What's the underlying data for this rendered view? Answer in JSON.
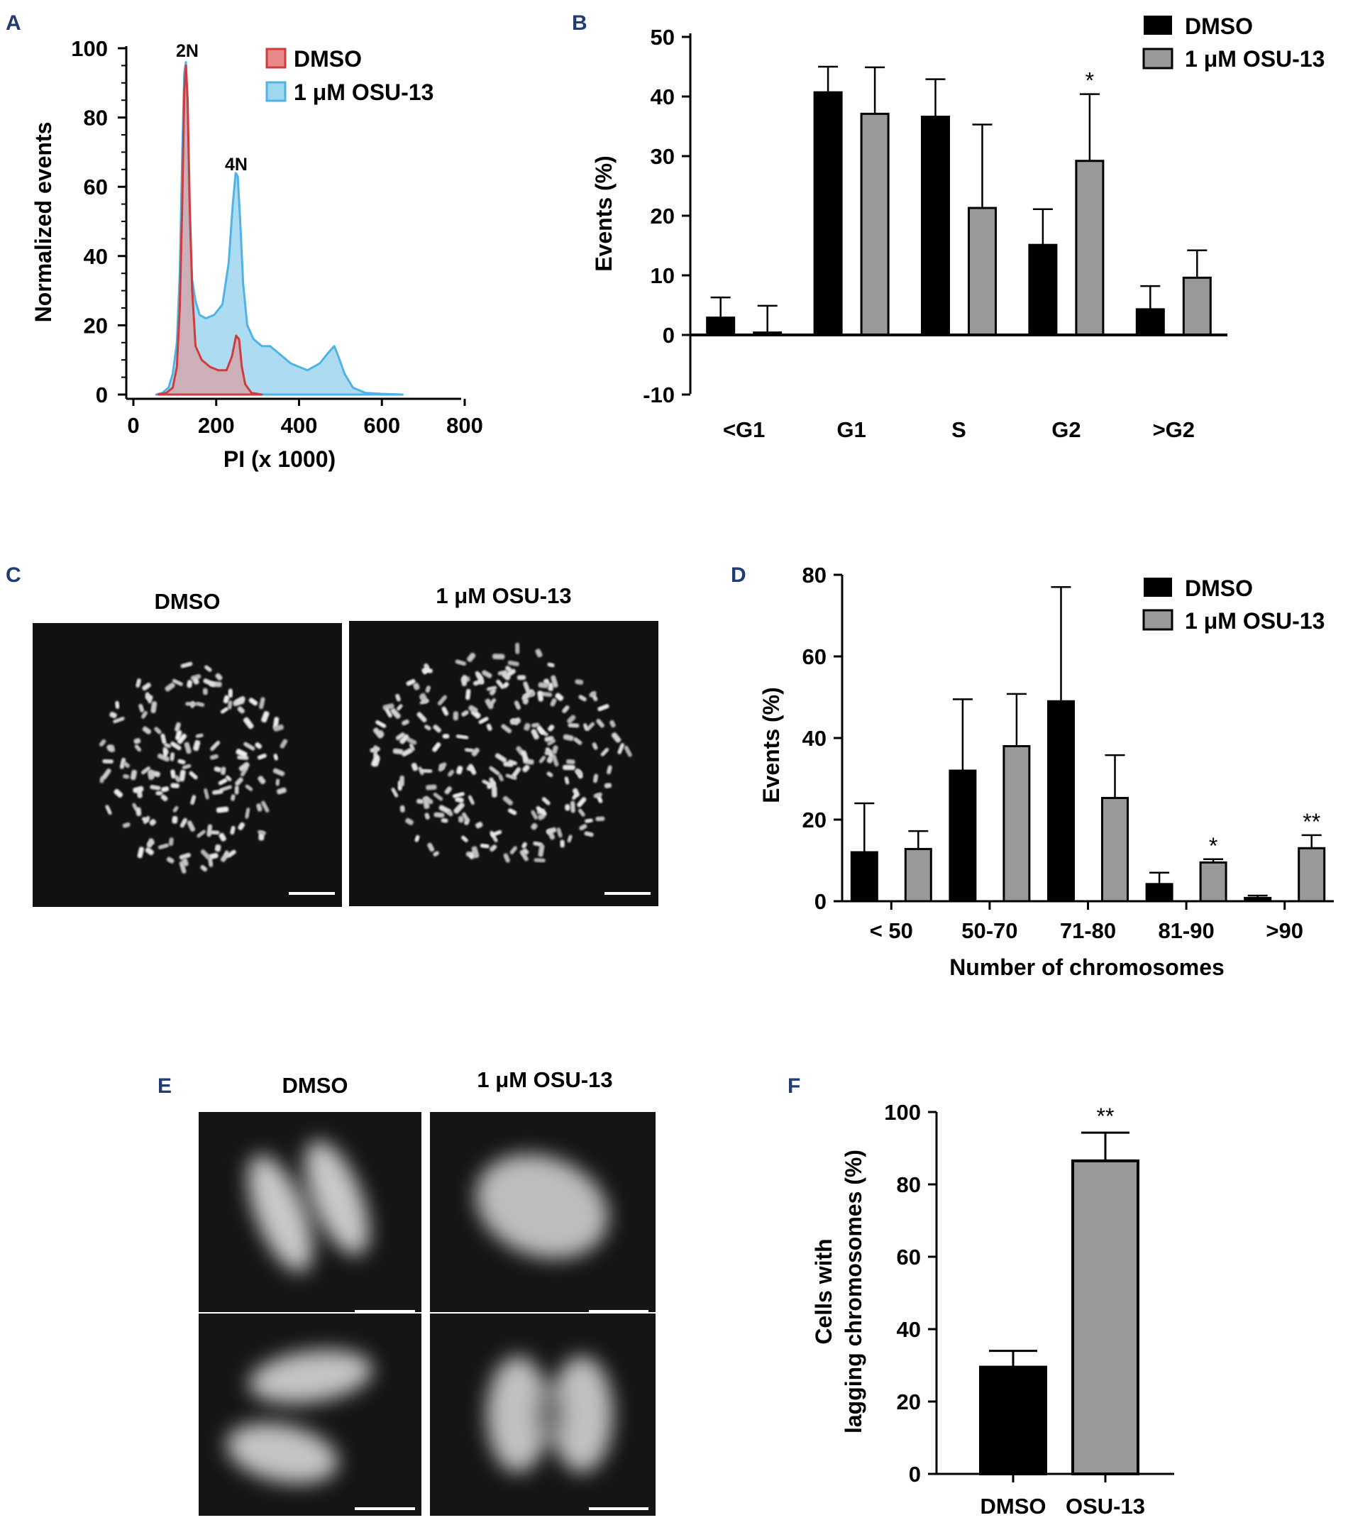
{
  "panel_labels": [
    "A",
    "B",
    "C",
    "D",
    "E",
    "F"
  ],
  "colors": {
    "dmso": "#000000",
    "osu": "#999999",
    "hist_dmso": "#e88a8a",
    "hist_osu": "#9fd6f0"
  },
  "chart_data": [
    {
      "id": "A",
      "type": "area",
      "xlabel": "PI (x 1000)",
      "ylabel": "Normalized events",
      "xlim": [
        0,
        800
      ],
      "ylim": [
        0,
        100
      ],
      "xticks": [
        "0",
        "200",
        "400",
        "600",
        "800"
      ],
      "yticks": [
        "0",
        "20",
        "40",
        "60",
        "80",
        "100"
      ],
      "annotations": [
        "2N",
        "4N"
      ],
      "legend": [
        "DMSO",
        "1 μM OSU-13"
      ],
      "series": [
        {
          "name": "DMSO",
          "x": [
            60,
            80,
            95,
            105,
            112,
            118,
            123,
            127,
            131,
            136,
            142,
            150,
            165,
            185,
            205,
            225,
            238,
            248,
            255,
            262,
            270,
            285,
            310
          ],
          "y": [
            0,
            0.5,
            2,
            8,
            25,
            55,
            88,
            95,
            85,
            55,
            30,
            14,
            10,
            8,
            7,
            7,
            11,
            17,
            16,
            8,
            3,
            0.5,
            0
          ]
        },
        {
          "name": "1 μM OSU-13",
          "x": [
            55,
            70,
            85,
            95,
            105,
            112,
            118,
            123,
            127,
            131,
            136,
            142,
            150,
            160,
            175,
            195,
            215,
            230,
            240,
            247,
            252,
            258,
            265,
            275,
            290,
            310,
            330,
            350,
            380,
            420,
            450,
            470,
            485,
            495,
            510,
            530,
            560,
            600,
            650
          ],
          "y": [
            0,
            0.5,
            2,
            6,
            15,
            35,
            70,
            93,
            96,
            80,
            50,
            33,
            27,
            23,
            22,
            23,
            26,
            38,
            55,
            64,
            63,
            50,
            32,
            20,
            16,
            14,
            14,
            12,
            9,
            7,
            9,
            12,
            14,
            11,
            6,
            2,
            0.5,
            0.2,
            0
          ]
        }
      ]
    },
    {
      "id": "B",
      "type": "bar",
      "ylabel": "Events (%)",
      "ylim": [
        -10,
        50
      ],
      "yticks": [
        "-10",
        "0",
        "10",
        "20",
        "30",
        "40",
        "50"
      ],
      "categories": [
        "<G1",
        "G1",
        "S",
        "G2",
        ">G2"
      ],
      "legend": [
        "DMSO",
        "1 μM OSU-13"
      ],
      "series": [
        {
          "name": "DMSO",
          "values": [
            2.9,
            40.7,
            36.6,
            15.1,
            4.3
          ],
          "errors": [
            3.4,
            4.3,
            6.3,
            6.0,
            3.9
          ]
        },
        {
          "name": "1 μM OSU-13",
          "values": [
            0.4,
            37.1,
            21.3,
            29.2,
            9.6
          ],
          "errors": [
            4.5,
            7.8,
            14.0,
            11.2,
            4.6
          ]
        }
      ],
      "significance": [
        {
          "category": "G2",
          "series": 1,
          "mark": "*"
        }
      ]
    },
    {
      "id": "D",
      "type": "bar",
      "xlabel": "Number of chromosomes",
      "ylabel": "Events (%)",
      "ylim": [
        0,
        80
      ],
      "yticks": [
        "0",
        "20",
        "40",
        "60",
        "80"
      ],
      "categories": [
        "< 50",
        "50-70",
        "71-80",
        "81-90",
        ">90"
      ],
      "legend": [
        "DMSO",
        "1 μM OSU-13"
      ],
      "series": [
        {
          "name": "DMSO",
          "values": [
            12,
            32,
            49,
            4.2,
            0.8
          ],
          "errors": [
            12,
            17.5,
            28,
            2.8,
            0.6
          ]
        },
        {
          "name": "1 μM OSU-13",
          "values": [
            12.8,
            38,
            25.3,
            9.5,
            13
          ],
          "errors": [
            4.4,
            12.8,
            10.5,
            0.8,
            3.2
          ]
        }
      ],
      "significance": [
        {
          "category": "81-90",
          "series": 1,
          "mark": "*"
        },
        {
          "category": ">90",
          "series": 1,
          "mark": "**"
        }
      ]
    },
    {
      "id": "F",
      "type": "bar",
      "ylabel": [
        "Cells with",
        "lagging chromosomes (%)"
      ],
      "ylim": [
        0,
        100
      ],
      "yticks": [
        "0",
        "20",
        "40",
        "60",
        "80",
        "100"
      ],
      "categories": [
        "DMSO",
        "OSU-13"
      ],
      "values": [
        29.5,
        86.5
      ],
      "errors": [
        4.5,
        7.8
      ],
      "significance": [
        {
          "category": "OSU-13",
          "mark": "**"
        }
      ]
    }
  ],
  "panel_C": {
    "titles": [
      "DMSO",
      "1 μM OSU-13"
    ]
  },
  "panel_E": {
    "titles": [
      "DMSO",
      "1 μM OSU-13"
    ]
  }
}
